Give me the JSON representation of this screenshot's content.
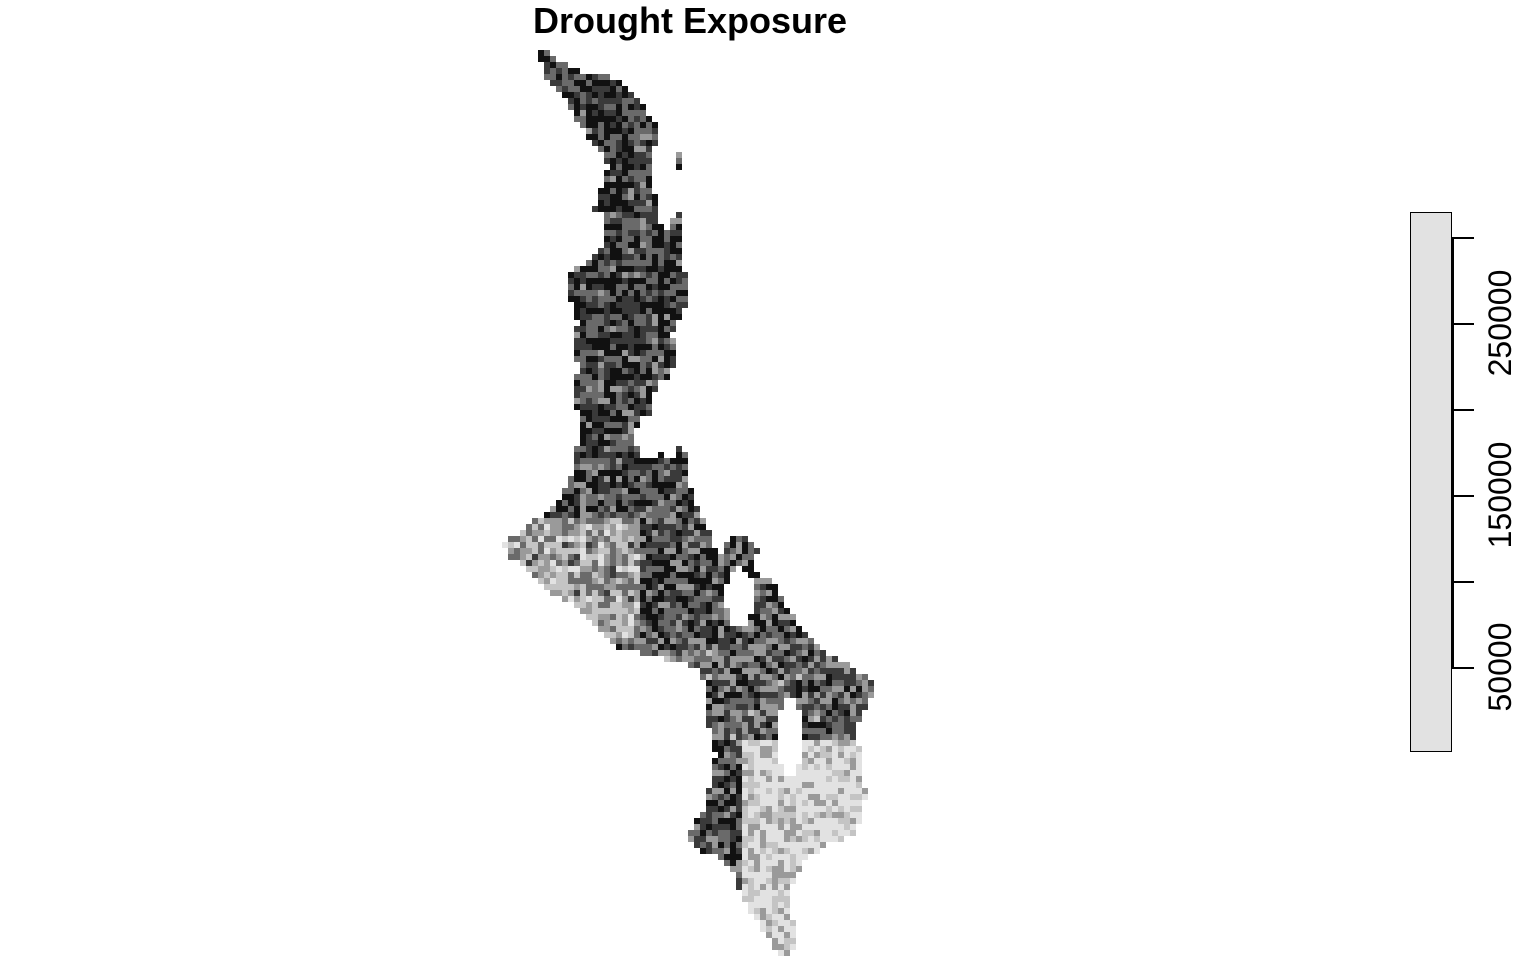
{
  "title": "Drought Exposure",
  "map": {
    "type": "raster",
    "palette": [
      "#111111",
      "#3a3a3a",
      "#6a6a6a",
      "#9a9a9a",
      "#c4c4c4",
      "#e2e2e2"
    ],
    "background": "#ffffff"
  },
  "legend": {
    "fill": "#e2e2e2",
    "tick_values": [
      300000,
      250000,
      200000,
      150000,
      100000,
      50000
    ],
    "labels": [
      "250000",
      "150000",
      "50000"
    ]
  }
}
